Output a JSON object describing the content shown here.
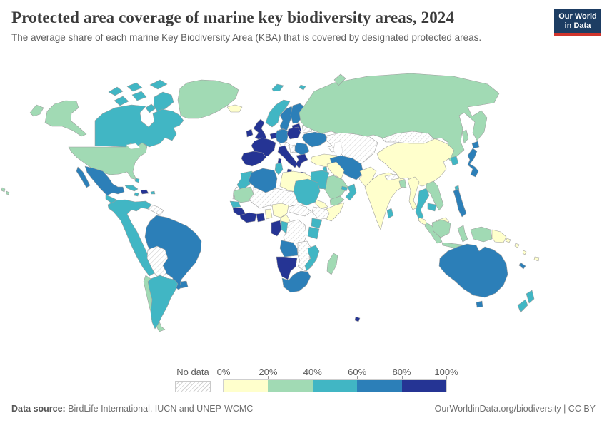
{
  "header": {
    "title": "Protected area coverage of marine key biodiversity areas, 2024",
    "subtitle": "The average share of each marine Key Biodiversity Area (KBA) that is covered by designated protected areas."
  },
  "logo": {
    "line1": "Our World",
    "line2": "in Data",
    "bg_color": "#1d3d63",
    "accent_color": "#d0342c"
  },
  "footer": {
    "source_label": "Data source:",
    "source_text": " BirdLife International, IUCN and UNEP-WCMC",
    "credit": "OurWorldinData.org/biodiversity | CC BY"
  },
  "chart_data": {
    "type": "choropleth_map",
    "title": "Protected area coverage of marine key biodiversity areas, 2024",
    "legend_tick_labels": [
      "0%",
      "20%",
      "40%",
      "60%",
      "80%",
      "100%"
    ],
    "no_data_label": "No data",
    "legend_buckets": [
      {
        "label": "0-20%",
        "color": "#ffffcc"
      },
      {
        "label": "20-40%",
        "color": "#a1dab4"
      },
      {
        "label": "40-60%",
        "color": "#41b6c4"
      },
      {
        "label": "60-80%",
        "color": "#2c7fb8"
      },
      {
        "label": "80-100%",
        "color": "#253494"
      }
    ],
    "regions": [
      {
        "id": "greenland",
        "label": "Greenland",
        "value": "20-40%"
      },
      {
        "id": "alaska",
        "label": "Alaska (United States)",
        "value": "20-40%"
      },
      {
        "id": "canadian-arctic",
        "label": "Canadian Arctic islands",
        "value": "40-60%"
      },
      {
        "id": "canada",
        "label": "Canada",
        "value": "40-60%"
      },
      {
        "id": "usa",
        "label": "United States",
        "value": "20-40%"
      },
      {
        "id": "hawaii",
        "label": "Hawaii (United States)",
        "value": "20-40%"
      },
      {
        "id": "mexico",
        "label": "Mexico",
        "value": "60-80%"
      },
      {
        "id": "central-america",
        "label": "Central America",
        "value": "40-60%"
      },
      {
        "id": "cuba",
        "label": "Cuba",
        "value": "40-60%"
      },
      {
        "id": "bahamas",
        "label": "Bahamas",
        "value": "40-60%"
      },
      {
        "id": "jamaica",
        "label": "Jamaica",
        "value": "40-60%"
      },
      {
        "id": "hispaniola",
        "label": "Dominican Republic and Haiti",
        "value": "80-100%"
      },
      {
        "id": "puerto-rico",
        "label": "Puerto Rico",
        "value": "40-60%"
      },
      {
        "id": "colombia-venezuela-peru",
        "label": "Colombia, Venezuela, Ecuador and Peru",
        "value": "40-60%"
      },
      {
        "id": "guyanas",
        "label": "Guyana and Suriname",
        "value": "No data"
      },
      {
        "id": "brazil",
        "label": "Brazil",
        "value": "60-80%"
      },
      {
        "id": "bolivia-paraguay",
        "label": "Bolivia and Paraguay",
        "value": "No data"
      },
      {
        "id": "chile",
        "label": "Chile",
        "value": "20-40%"
      },
      {
        "id": "argentina",
        "label": "Argentina",
        "value": "40-60%"
      },
      {
        "id": "uruguay",
        "label": "Uruguay",
        "value": "60-80%"
      },
      {
        "id": "iceland",
        "label": "Iceland",
        "value": "0-20%"
      },
      {
        "id": "svalbard",
        "label": "Svalbard",
        "value": "40-60%"
      },
      {
        "id": "norway",
        "label": "Norway",
        "value": "40-60%"
      },
      {
        "id": "sweden",
        "label": "Sweden",
        "value": "60-80%"
      },
      {
        "id": "finland",
        "label": "Finland",
        "value": "60-80%"
      },
      {
        "id": "denmark",
        "label": "Denmark",
        "value": "60-80%"
      },
      {
        "id": "uk",
        "label": "United Kingdom",
        "value": "80-100%"
      },
      {
        "id": "ireland",
        "label": "Ireland",
        "value": "80-100%"
      },
      {
        "id": "low-countries",
        "label": "Netherlands and Belgium",
        "value": "80-100%"
      },
      {
        "id": "germany",
        "label": "Germany",
        "value": "60-80%"
      },
      {
        "id": "france",
        "label": "France",
        "value": "80-100%"
      },
      {
        "id": "iberia",
        "label": "Spain and Portugal",
        "value": "80-100%"
      },
      {
        "id": "italy",
        "label": "Italy",
        "value": "80-100%"
      },
      {
        "id": "alpine",
        "label": "Switzerland and Austria",
        "value": "No data"
      },
      {
        "id": "poland",
        "label": "Poland",
        "value": "80-100%"
      },
      {
        "id": "baltics",
        "label": "Baltic states",
        "value": "80-100%"
      },
      {
        "id": "belarus",
        "label": "Belarus",
        "value": "No data"
      },
      {
        "id": "ukraine",
        "label": "Ukraine",
        "value": "60-80%"
      },
      {
        "id": "romania-bulgaria",
        "label": "Romania and Bulgaria",
        "value": "60-80%"
      },
      {
        "id": "balkans",
        "label": "Serbia and Western Balkans",
        "value": "No data"
      },
      {
        "id": "greece",
        "label": "Greece",
        "value": "80-100%"
      },
      {
        "id": "turkey",
        "label": "Turkey",
        "value": "0-20%"
      },
      {
        "id": "russia",
        "label": "Russia",
        "value": "20-40%"
      },
      {
        "id": "caucasus",
        "label": "Caucasus",
        "value": "No data"
      },
      {
        "id": "central-asia",
        "label": "Central Asia and Afghanistan",
        "value": "No data"
      },
      {
        "id": "iran",
        "label": "Iran",
        "value": "60-80%"
      },
      {
        "id": "iraq-syria",
        "label": "Syria and Iraq",
        "value": "0-20%"
      },
      {
        "id": "levant",
        "label": "Israel and Jordan",
        "value": "40-60%"
      },
      {
        "id": "saudi",
        "label": "Saudi Arabia",
        "value": "20-40%"
      },
      {
        "id": "yemen",
        "label": "Yemen",
        "value": "20-40%"
      },
      {
        "id": "oman",
        "label": "Oman",
        "value": "40-60%"
      },
      {
        "id": "gulf-states",
        "label": "United Arab Emirates and Qatar",
        "value": "40-60%"
      },
      {
        "id": "morocco",
        "label": "Morocco",
        "value": "40-60%"
      },
      {
        "id": "western-sahara",
        "label": "Western Sahara",
        "value": "No data"
      },
      {
        "id": "algeria",
        "label": "Algeria",
        "value": "60-80%"
      },
      {
        "id": "tunisia",
        "label": "Tunisia",
        "value": "40-60%"
      },
      {
        "id": "libya",
        "label": "Libya",
        "value": "0-20%"
      },
      {
        "id": "egypt",
        "label": "Egypt",
        "value": "40-60%"
      },
      {
        "id": "mauritania",
        "label": "Mauritania",
        "value": "20-40%"
      },
      {
        "id": "sahel",
        "label": "Mali, Niger and Chad",
        "value": "No data"
      },
      {
        "id": "senegal",
        "label": "Senegal and Gambia",
        "value": "40-60%"
      },
      {
        "id": "guinea",
        "label": "Guinea and Sierra Leone",
        "value": "80-100%"
      },
      {
        "id": "liberia-ci",
        "label": "Liberia and Cote d'Ivoire",
        "value": "80-100%"
      },
      {
        "id": "ghana",
        "label": "Ghana",
        "value": "80-100%"
      },
      {
        "id": "togo-benin",
        "label": "Togo and Benin",
        "value": "0-20%"
      },
      {
        "id": "nigeria",
        "label": "Nigeria",
        "value": "0-20%"
      },
      {
        "id": "cameroon",
        "label": "Cameroon",
        "value": "0-20%"
      },
      {
        "id": "sudan",
        "label": "Sudan",
        "value": "40-60%"
      },
      {
        "id": "eritrea",
        "label": "Eritrea and Djibouti",
        "value": "0-20%"
      },
      {
        "id": "ethiopia",
        "label": "Ethiopia",
        "value": "No data"
      },
      {
        "id": "somalia",
        "label": "Somalia",
        "value": "0-20%"
      },
      {
        "id": "kenya",
        "label": "Kenya",
        "value": "40-60%"
      },
      {
        "id": "tanzania",
        "label": "Tanzania",
        "value": "40-60%"
      },
      {
        "id": "car-ssudan",
        "label": "Central African Republic and South Sudan",
        "value": "No data"
      },
      {
        "id": "drc",
        "label": "Democratic Republic of Congo",
        "value": "No data"
      },
      {
        "id": "gabon",
        "label": "Gabon and Equatorial Guinea",
        "value": "80-100%"
      },
      {
        "id": "congo",
        "label": "Republic of the Congo",
        "value": "40-60%"
      },
      {
        "id": "angola",
        "label": "Angola",
        "value": "60-80%"
      },
      {
        "id": "zambia-zimbabwe",
        "label": "Zambia, Zimbabwe and Botswana",
        "value": "No data"
      },
      {
        "id": "namibia",
        "label": "Namibia",
        "value": "80-100%"
      },
      {
        "id": "south-africa",
        "label": "South Africa",
        "value": "60-80%"
      },
      {
        "id": "mozambique",
        "label": "Mozambique",
        "value": "40-60%"
      },
      {
        "id": "madagascar",
        "label": "Madagascar",
        "value": "20-40%"
      },
      {
        "id": "kerguelen",
        "label": "French Southern Territories",
        "value": "80-100%"
      },
      {
        "id": "pakistan",
        "label": "Pakistan",
        "value": "0-20%"
      },
      {
        "id": "india",
        "label": "India",
        "value": "0-20%"
      },
      {
        "id": "nepal",
        "label": "Nepal",
        "value": "No data"
      },
      {
        "id": "bangladesh",
        "label": "Bangladesh",
        "value": "20-40%"
      },
      {
        "id": "sri-lanka",
        "label": "Sri Lanka",
        "value": "40-60%"
      },
      {
        "id": "china",
        "label": "China",
        "value": "0-20%"
      },
      {
        "id": "mongolia",
        "label": "Mongolia",
        "value": "No data"
      },
      {
        "id": "south-korea",
        "label": "South Korea",
        "value": "40-60%"
      },
      {
        "id": "japan",
        "label": "Japan",
        "value": "60-80%"
      },
      {
        "id": "taiwan",
        "label": "Taiwan",
        "value": "40-60%"
      },
      {
        "id": "myanmar",
        "label": "Myanmar",
        "value": "0-20%"
      },
      {
        "id": "thailand",
        "label": "Thailand",
        "value": "40-60%"
      },
      {
        "id": "laos-vietnam",
        "label": "Vietnam and Laos",
        "value": "20-40%"
      },
      {
        "id": "cambodia",
        "label": "Cambodia",
        "value": "40-60%"
      },
      {
        "id": "malaysia",
        "label": "Malaysia",
        "value": "0-20%"
      },
      {
        "id": "indonesia",
        "label": "Indonesia",
        "value": "20-40%"
      },
      {
        "id": "philippines",
        "label": "Philippines",
        "value": "60-80%"
      },
      {
        "id": "png",
        "label": "Papua New Guinea",
        "value": "0-20%"
      },
      {
        "id": "australia",
        "label": "Australia",
        "value": "60-80%"
      },
      {
        "id": "new-zealand",
        "label": "New Zealand",
        "value": "40-60%"
      },
      {
        "id": "new-caledonia",
        "label": "New Caledonia",
        "value": "60-80%"
      },
      {
        "id": "fiji",
        "label": "Fiji",
        "value": "0-20%"
      },
      {
        "id": "solomon",
        "label": "Solomon Islands and Vanuatu",
        "value": "0-20%"
      }
    ]
  }
}
